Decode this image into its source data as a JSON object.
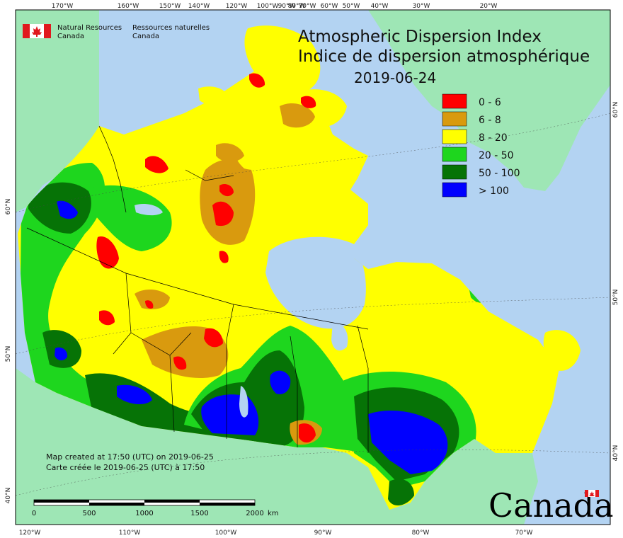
{
  "title": {
    "line1": "Atmospheric Dispersion Index",
    "line2": "Indice de dispersion atmosphérique",
    "date": "2019-06-24"
  },
  "agency": {
    "en_line1": "Natural Resources",
    "en_line2": "Canada",
    "fr_line1": "Ressources naturelles",
    "fr_line2": "Canada"
  },
  "legend": {
    "placement": "top-right",
    "items": [
      {
        "label": "0 - 6",
        "color": "#ff0000"
      },
      {
        "label": "6 - 8",
        "color": "#d99a0e"
      },
      {
        "label": "8 - 20",
        "color": "#ffff00"
      },
      {
        "label": "20 - 50",
        "color": "#1ed61e"
      },
      {
        "label": "50 - 100",
        "color": "#067306"
      },
      {
        "label": "> 100",
        "color": "#0000ff"
      }
    ]
  },
  "graticule": {
    "top_ticks": [
      "170°W",
      "160°W",
      "150°W",
      "140°W",
      "120°W",
      "100°W",
      "90°W",
      "80°W",
      "70°W",
      "60°W",
      "50°W",
      "40°W",
      "30°W",
      "20°W"
    ],
    "bottom_ticks": [
      "120°W",
      "110°W",
      "100°W",
      "90°W",
      "80°W",
      "70°W"
    ],
    "left_ticks": [
      "60°N",
      "50°N",
      "40°N"
    ],
    "right_ticks": [
      "60°N",
      "50°N",
      "40°N"
    ]
  },
  "scale_bar": {
    "labels": [
      "0",
      "500",
      "1000",
      "1500",
      "2000"
    ],
    "unit": "km"
  },
  "credits": {
    "line1": "Map created at 17:50 (UTC) on 2019-06-25",
    "line2": "Carte créée le 2019-06-25 (UTC) à 17:50"
  },
  "wordmark": "Canada",
  "colors": {
    "ocean": "#b3d3f2",
    "foreign_land": "#9ee6b5",
    "boundary": "#000000"
  }
}
